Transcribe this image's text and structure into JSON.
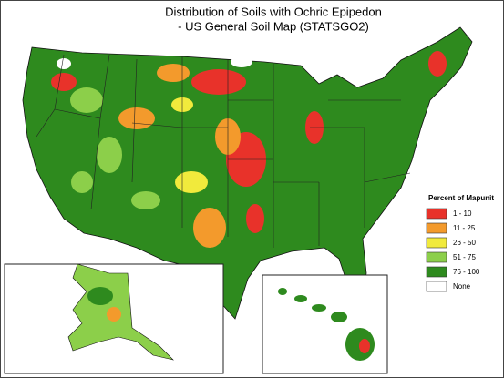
{
  "title": {
    "line1": "Distribution of Soils with Ochric Epipedon",
    "line2": "- US General Soil Map (STATSGO2)"
  },
  "legend": {
    "title": "Percent of Mapunit",
    "items": [
      {
        "label": "1 - 10",
        "color": "#e8322a"
      },
      {
        "label": "11 - 25",
        "color": "#f39a2c"
      },
      {
        "label": "26 - 50",
        "color": "#f1ea3c"
      },
      {
        "label": "51 - 75",
        "color": "#8ccf4a"
      },
      {
        "label": "76 - 100",
        "color": "#2e8a1e"
      },
      {
        "label": "None",
        "color": "#ffffff"
      }
    ]
  }
}
